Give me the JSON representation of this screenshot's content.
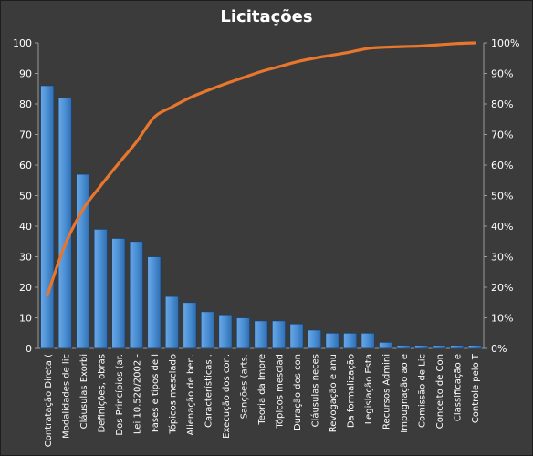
{
  "chart_data": {
    "type": "bar",
    "title": "Licitações",
    "categories": [
      "Contratação Direta (",
      "Modalidades de lic",
      "Cláusulas Exorbi",
      "Definições, obras",
      "Dos Princípios (ar.",
      "Lei 10.520/2002 -",
      "Fases e tipos de l",
      "Tópicos mesclado",
      "Alienação de ben.",
      "Características .",
      "Execução dos con.",
      "Sanções (arts.",
      "Teoria da Impre",
      "Tópicos mesclad",
      "Duração dos con",
      "Cláusulas neces",
      "Revogação e anu",
      "Da formalização",
      "Legislação Esta",
      "Recursos Admini",
      "Impugnação ao e",
      "Comissão de Lic",
      "Conceito de Con",
      "Classificação e",
      "Controle pelo T"
    ],
    "series": [
      {
        "type": "bar",
        "axis": "left",
        "values": [
          86,
          82,
          57,
          39,
          36,
          35,
          30,
          17,
          15,
          12,
          11,
          10,
          9,
          9,
          8,
          6,
          5,
          5,
          5,
          2,
          1,
          1,
          1,
          1,
          1
        ]
      },
      {
        "type": "line",
        "axis": "right",
        "values": [
          17.3,
          33.9,
          45.4,
          53.2,
          60.5,
          67.5,
          75.6,
          79.0,
          82.0,
          84.4,
          86.6,
          88.6,
          90.6,
          92.2,
          93.8,
          95.0,
          96.0,
          97.0,
          98.2,
          98.6,
          98.8,
          99.0,
          99.4,
          99.8,
          100
        ]
      }
    ],
    "y_left": {
      "ylim": [
        0,
        100
      ],
      "ticks": [
        "0",
        "10",
        "20",
        "30",
        "40",
        "50",
        "60",
        "70",
        "80",
        "90",
        "100"
      ]
    },
    "y_right": {
      "ylim": [
        0,
        100
      ],
      "ticks": [
        "0%",
        "10%",
        "20%",
        "30%",
        "40%",
        "50%",
        "60%",
        "70%",
        "80%",
        "90%",
        "100%"
      ]
    },
    "colors": {
      "background": "#3b3b3b",
      "bar": "#4b8fd4",
      "line": "#e8762c",
      "text": "#ffffff"
    },
    "grid": false,
    "legend": "none"
  }
}
